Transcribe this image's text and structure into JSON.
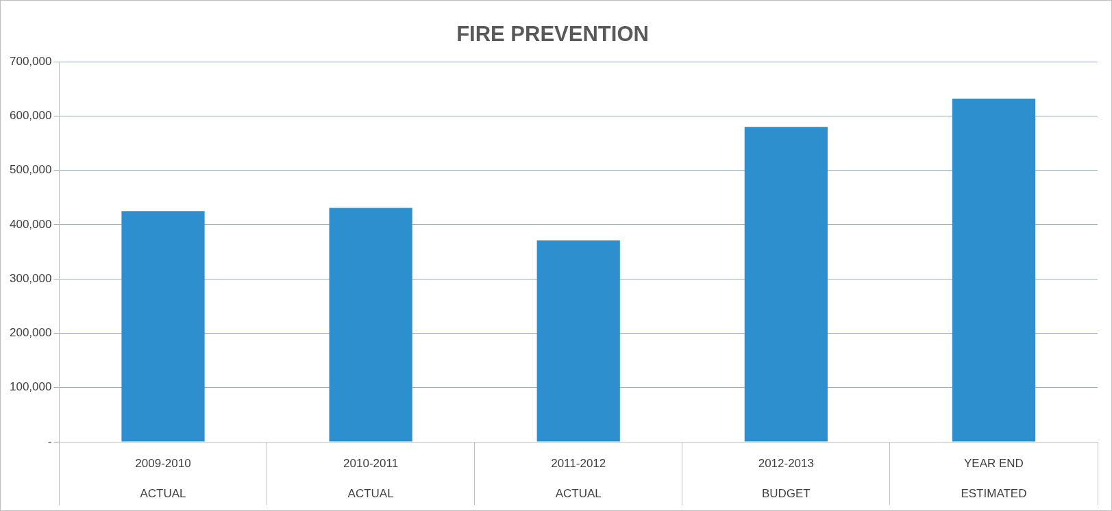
{
  "chart_data": {
    "type": "bar",
    "title": "FIRE PREVENTION",
    "categories": [
      "2009-2010\nACTUAL",
      "2010-2011\nACTUAL",
      "2011-2012\nACTUAL",
      "2012-2013\nBUDGET",
      "YEAR END\nESTIMATED"
    ],
    "values": [
      425000,
      431000,
      371000,
      580000,
      632000
    ],
    "color": "#2e8fcf",
    "ylim": [
      0,
      700000
    ],
    "yticks": [
      {
        "value": 0,
        "label": "-"
      },
      {
        "value": 100000,
        "label": "100,000"
      },
      {
        "value": 200000,
        "label": "200,000"
      },
      {
        "value": 300000,
        "label": "300,000"
      },
      {
        "value": 400000,
        "label": "400,000"
      },
      {
        "value": 500000,
        "label": "500,000"
      },
      {
        "value": 600000,
        "label": "600,000"
      },
      {
        "value": 700000,
        "label": "700,000"
      }
    ],
    "grid": "y"
  }
}
